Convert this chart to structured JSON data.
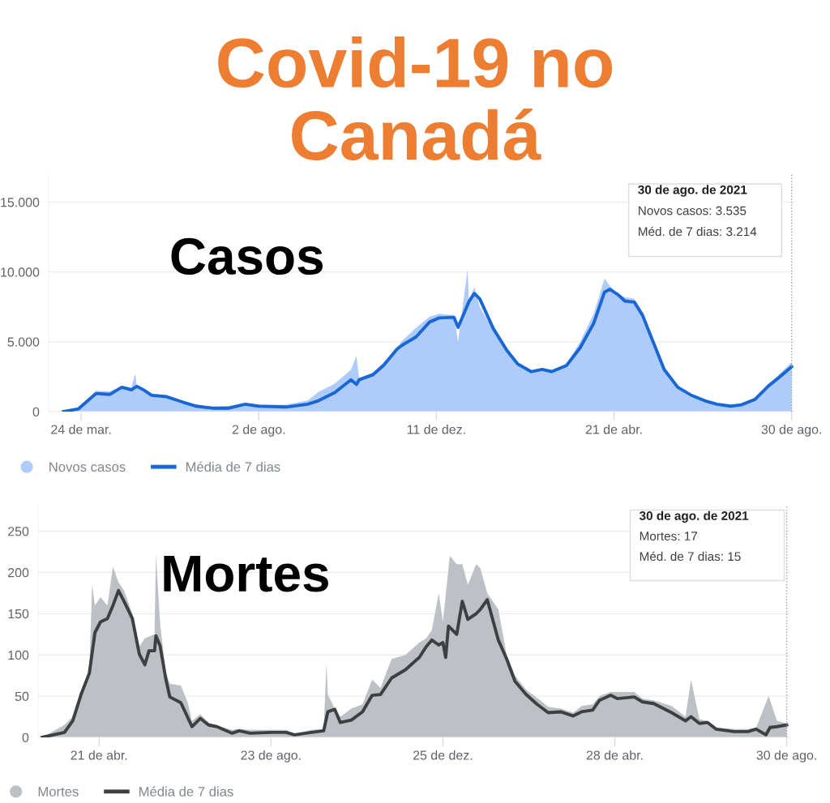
{
  "chart_data": [
    {
      "type": "area",
      "title": "Covid-19 no\nCanadá",
      "subtitle": "Casos",
      "xlim": [
        "2020-02-29",
        "2021-09-01"
      ],
      "ylim": [
        0,
        17000
      ],
      "xticks": [
        {
          "value": "2020-03-24",
          "label": "24 de mar."
        },
        {
          "value": "2020-08-02",
          "label": "2 de ago."
        },
        {
          "value": "2020-12-11",
          "label": "11 de dez."
        },
        {
          "value": "2021-04-21",
          "label": "21 de abr."
        },
        {
          "value": "2021-08-30",
          "label": "30 de ago."
        }
      ],
      "yticks": [
        0,
        {
          "value": 5000,
          "label": "5.000"
        },
        {
          "value": 10000,
          "label": "10.000"
        },
        {
          "value": 15000,
          "label": "15.000"
        }
      ],
      "grid": "y",
      "legend": "bottom left",
      "ref_lines": [
        {
          "axis": "x",
          "value": "2021-08-30",
          "color": "#9aa0a6",
          "line_style": "dotted"
        }
      ],
      "annotations": [
        "30 de ago. de 2021",
        "Novos casos: 3.535",
        "Méd. de 7 dias: 3.214"
      ],
      "series": [
        {
          "name": "Novos casos",
          "color": "#aecbfa",
          "x": [
            "2020-03-11",
            "2020-03-22",
            "2020-04-04",
            "2020-04-14",
            "2020-04-23",
            "2020-04-30",
            "2020-05-03",
            "2020-05-04",
            "2020-05-15",
            "2020-05-26",
            "2020-06-07",
            "2020-06-17",
            "2020-06-29",
            "2020-07-11",
            "2020-07-23",
            "2020-08-02",
            "2020-08-22",
            "2020-09-07",
            "2020-09-15",
            "2020-09-27",
            "2020-10-09",
            "2020-10-13",
            "2020-10-15",
            "2020-10-25",
            "2020-11-02",
            "2020-11-12",
            "2020-11-16",
            "2020-11-26",
            "2020-12-06",
            "2020-12-13",
            "2020-12-24",
            "2020-12-27",
            "2021-01-03",
            "2021-01-04",
            "2021-01-08",
            "2021-01-12",
            "2021-01-22",
            "2021-02-01",
            "2021-02-09",
            "2021-02-19",
            "2021-02-27",
            "2021-03-06",
            "2021-03-17",
            "2021-03-27",
            "2021-04-06",
            "2021-04-14",
            "2021-04-18",
            "2021-04-24",
            "2021-04-29",
            "2021-05-06",
            "2021-05-12",
            "2021-05-20",
            "2021-05-28",
            "2021-06-07",
            "2021-06-17",
            "2021-06-27",
            "2021-07-06",
            "2021-07-16",
            "2021-07-24",
            "2021-08-03",
            "2021-08-13",
            "2021-08-21",
            "2021-08-30"
          ],
          "values": [
            0,
            300,
            1500,
            1450,
            1800,
            1750,
            2720,
            1700,
            1300,
            1150,
            700,
            450,
            350,
            400,
            600,
            450,
            500,
            800,
            1400,
            2000,
            3000,
            4000,
            2400,
            2800,
            3500,
            4600,
            5100,
            6000,
            6800,
            7000,
            6900,
            5000,
            10200,
            8000,
            8900,
            7500,
            5800,
            4600,
            3300,
            2900,
            3100,
            3000,
            3400,
            5000,
            7000,
            9530,
            9000,
            8400,
            8200,
            8100,
            7000,
            4700,
            3000,
            1700,
            1000,
            800,
            550,
            450,
            500,
            900,
            1950,
            2700,
            3535
          ]
        },
        {
          "name": "Média de 7 dias",
          "type": "line",
          "color": "#1967d2",
          "line_style": "solid",
          "x": [
            "2020-03-11",
            "2020-03-22",
            "2020-04-04",
            "2020-04-14",
            "2020-04-23",
            "2020-04-30",
            "2020-05-04",
            "2020-05-09",
            "2020-05-15",
            "2020-05-26",
            "2020-06-07",
            "2020-06-17",
            "2020-06-29",
            "2020-07-11",
            "2020-07-23",
            "2020-08-02",
            "2020-08-22",
            "2020-09-07",
            "2020-09-15",
            "2020-09-27",
            "2020-10-09",
            "2020-10-13",
            "2020-10-15",
            "2020-10-25",
            "2020-11-02",
            "2020-11-12",
            "2020-11-16",
            "2020-11-26",
            "2020-12-06",
            "2020-12-13",
            "2020-12-24",
            "2020-12-27",
            "2021-01-04",
            "2021-01-08",
            "2021-01-12",
            "2021-01-22",
            "2021-02-01",
            "2021-02-09",
            "2021-02-19",
            "2021-02-27",
            "2021-03-06",
            "2021-03-17",
            "2021-03-27",
            "2021-04-06",
            "2021-04-14",
            "2021-04-18",
            "2021-04-24",
            "2021-04-29",
            "2021-05-06",
            "2021-05-12",
            "2021-05-20",
            "2021-05-28",
            "2021-06-07",
            "2021-06-17",
            "2021-06-27",
            "2021-07-06",
            "2021-07-16",
            "2021-07-24",
            "2021-08-03",
            "2021-08-13",
            "2021-08-21",
            "2021-08-30"
          ],
          "values": [
            0,
            200,
            1300,
            1230,
            1750,
            1560,
            1810,
            1560,
            1170,
            1070,
            680,
            390,
            250,
            250,
            530,
            390,
            330,
            530,
            780,
            1360,
            2280,
            1950,
            2280,
            2630,
            3310,
            4480,
            4770,
            5350,
            6420,
            6710,
            6750,
            6030,
            7880,
            8460,
            8070,
            5940,
            4380,
            3410,
            2860,
            3020,
            2860,
            3310,
            4570,
            6320,
            8560,
            8760,
            8370,
            7920,
            7840,
            6910,
            4960,
            3020,
            1750,
            1170,
            780,
            530,
            390,
            490,
            880,
            1850,
            2470,
            3214
          ]
        }
      ]
    },
    {
      "type": "area",
      "subtitle": "Mortes",
      "xlim": [
        "2020-03-08",
        "2021-09-01"
      ],
      "ylim": [
        0,
        280
      ],
      "xticks": [
        {
          "value": "2020-04-21",
          "label": "21 de abr."
        },
        {
          "value": "2020-08-23",
          "label": "23 de ago."
        },
        {
          "value": "2020-12-25",
          "label": "25 de dez."
        },
        {
          "value": "2021-04-28",
          "label": "28 de abr."
        },
        {
          "value": "2021-08-30",
          "label": "30 de ago."
        }
      ],
      "yticks": [
        0,
        50,
        100,
        150,
        200,
        250
      ],
      "grid": "y",
      "legend": "bottom left",
      "ref_lines": [
        {
          "axis": "x",
          "value": "2021-08-30",
          "color": "#9aa0a6",
          "line_style": "dotted"
        }
      ],
      "annotations": [
        "30 de ago. de 2021",
        "Mortes: 17",
        "Méd. de 7 dias: 15"
      ],
      "series": [
        {
          "name": "Mortes",
          "color": "#bdc1c6",
          "x": [
            "2020-03-11",
            "2020-03-27",
            "2020-04-02",
            "2020-04-08",
            "2020-04-14",
            "2020-04-16",
            "2020-04-18",
            "2020-04-22",
            "2020-04-27",
            "2020-05-01",
            "2020-05-05",
            "2020-05-09",
            "2020-05-15",
            "2020-05-20",
            "2020-05-24",
            "2020-05-31",
            "2020-06-01",
            "2020-06-04",
            "2020-06-08",
            "2020-06-11",
            "2020-06-19",
            "2020-06-24",
            "2020-06-27",
            "2020-07-03",
            "2020-07-09",
            "2020-07-15",
            "2020-07-26",
            "2020-07-31",
            "2020-08-08",
            "2020-08-23",
            "2020-09-03",
            "2020-09-09",
            "2020-09-21",
            "2020-09-30",
            "2020-10-02",
            "2020-10-03",
            "2020-10-08",
            "2020-10-12",
            "2020-10-20",
            "2020-10-28",
            "2020-11-04",
            "2020-11-10",
            "2020-11-18",
            "2020-11-28",
            "2020-12-08",
            "2020-12-13",
            "2020-12-17",
            "2020-12-22",
            "2020-12-25",
            "2020-12-30",
            "2021-01-04",
            "2021-01-08",
            "2021-01-12",
            "2021-01-18",
            "2021-01-21",
            "2021-01-26",
            "2021-02-03",
            "2021-02-09",
            "2021-02-15",
            "2021-02-23",
            "2021-03-03",
            "2021-03-11",
            "2021-03-20",
            "2021-03-29",
            "2021-04-04",
            "2021-04-12",
            "2021-04-17",
            "2021-04-25",
            "2021-04-30",
            "2021-05-12",
            "2021-05-18",
            "2021-05-26",
            "2021-06-08",
            "2021-06-18",
            "2021-06-22",
            "2021-06-28",
            "2021-07-04",
            "2021-07-10",
            "2021-07-23",
            "2021-08-02",
            "2021-08-08",
            "2021-08-17",
            "2021-08-23",
            "2021-08-30"
          ],
          "values": [
            0,
            15,
            25,
            50,
            85,
            185,
            160,
            170,
            160,
            207,
            188,
            178,
            150,
            110,
            120,
            125,
            222,
            138,
            80,
            65,
            63,
            42,
            20,
            28,
            18,
            14,
            9,
            10,
            9,
            9,
            9,
            4,
            9,
            10,
            90,
            52,
            35,
            25,
            35,
            40,
            70,
            60,
            95,
            100,
            115,
            120,
            130,
            175,
            140,
            220,
            210,
            210,
            185,
            210,
            205,
            175,
            155,
            100,
            75,
            58,
            48,
            37,
            35,
            30,
            38,
            40,
            50,
            55,
            55,
            55,
            47,
            45,
            38,
            25,
            70,
            22,
            20,
            12,
            10,
            10,
            12,
            50,
            20,
            17
          ]
        },
        {
          "name": "Média de 7 dias",
          "type": "line",
          "color": "#3c4043",
          "line_style": "solid",
          "x": [
            "2020-03-11",
            "2020-03-27",
            "2020-04-02",
            "2020-04-08",
            "2020-04-14",
            "2020-04-18",
            "2020-04-22",
            "2020-04-27",
            "2020-05-01",
            "2020-05-05",
            "2020-05-09",
            "2020-05-15",
            "2020-05-20",
            "2020-05-24",
            "2020-05-27",
            "2020-05-31",
            "2020-06-01",
            "2020-06-04",
            "2020-06-08",
            "2020-06-11",
            "2020-06-19",
            "2020-06-27",
            "2020-07-03",
            "2020-07-09",
            "2020-07-15",
            "2020-07-26",
            "2020-07-31",
            "2020-08-08",
            "2020-08-23",
            "2020-09-03",
            "2020-09-09",
            "2020-09-21",
            "2020-09-30",
            "2020-10-03",
            "2020-10-08",
            "2020-10-12",
            "2020-10-20",
            "2020-10-28",
            "2020-11-04",
            "2020-11-10",
            "2020-11-18",
            "2020-11-28",
            "2020-12-08",
            "2020-12-13",
            "2020-12-17",
            "2020-12-22",
            "2020-12-25",
            "2020-12-27",
            "2020-12-29",
            "2021-01-04",
            "2021-01-08",
            "2021-01-12",
            "2021-01-18",
            "2021-01-21",
            "2021-01-26",
            "2021-02-03",
            "2021-02-09",
            "2021-02-15",
            "2021-02-23",
            "2021-03-03",
            "2021-03-11",
            "2021-03-20",
            "2021-03-29",
            "2021-04-04",
            "2021-04-12",
            "2021-04-17",
            "2021-04-25",
            "2021-04-30",
            "2021-05-12",
            "2021-05-18",
            "2021-05-26",
            "2021-06-08",
            "2021-06-18",
            "2021-06-22",
            "2021-06-28",
            "2021-07-04",
            "2021-07-10",
            "2021-07-23",
            "2021-08-02",
            "2021-08-08",
            "2021-08-15",
            "2021-08-18",
            "2021-08-23",
            "2021-08-30"
          ],
          "values": [
            0,
            6,
            20,
            52,
            78,
            127,
            140,
            144,
            160,
            178,
            165,
            144,
            101,
            88,
            105,
            105,
            123,
            111,
            72,
            49,
            42,
            13,
            23,
            15,
            13,
            5,
            8,
            5,
            6,
            6,
            3,
            6,
            8,
            31,
            34,
            18,
            21,
            31,
            51,
            52,
            72,
            82,
            97,
            110,
            118,
            112,
            115,
            97,
            135,
            125,
            165,
            143,
            150,
            155,
            167,
            118,
            95,
            68,
            52,
            40,
            30,
            31,
            26,
            31,
            33,
            45,
            51,
            47,
            49,
            43,
            41,
            30,
            20,
            25,
            17,
            18,
            10,
            7,
            7,
            10,
            3,
            12,
            13,
            15
          ]
        }
      ]
    }
  ]
}
